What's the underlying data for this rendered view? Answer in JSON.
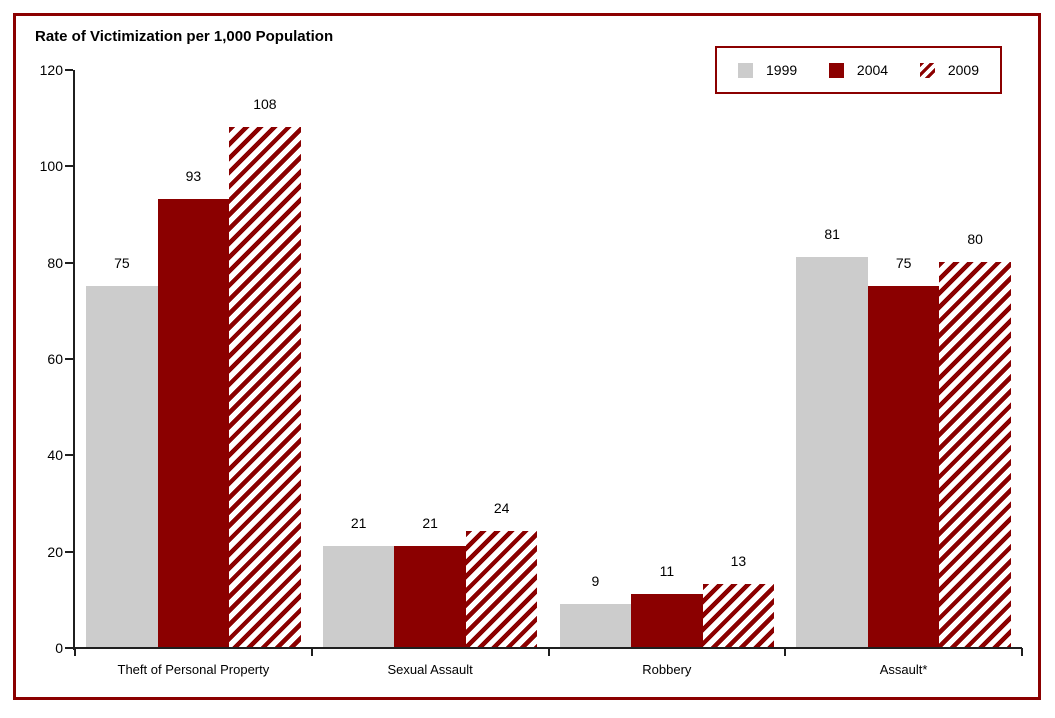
{
  "title": "Rate of Victimization per 1,000 Population",
  "colors": {
    "frame_border": "#8B0000",
    "legend_border": "#8B0000",
    "axis": "#1f1f1f",
    "gray_series": "#CCCCCC",
    "dark_red_series": "#8B0000",
    "background": "#FFFFFF"
  },
  "chart_data": {
    "type": "bar",
    "title": "Rate of Victimization per 1,000 Population",
    "categories": [
      "Theft of Personal Property",
      "Sexual Assault",
      "Robbery",
      "Assault*"
    ],
    "series": [
      {
        "name": "1999",
        "values": [
          75,
          21,
          9,
          81
        ],
        "color": "#CCCCCC",
        "pattern": "solid"
      },
      {
        "name": "2004",
        "values": [
          93,
          21,
          11,
          75
        ],
        "color": "#8B0000",
        "pattern": "solid"
      },
      {
        "name": "2009",
        "values": [
          108,
          24,
          13,
          80
        ],
        "color": "#8B0000",
        "pattern": "diagonal-stripes"
      }
    ],
    "xlabel": "",
    "ylabel": "",
    "ylim": [
      0,
      120
    ],
    "yticks": [
      0,
      20,
      40,
      60,
      80,
      100,
      120
    ],
    "grid": false,
    "legend_position": "top-right",
    "bar_value_labels": true
  }
}
